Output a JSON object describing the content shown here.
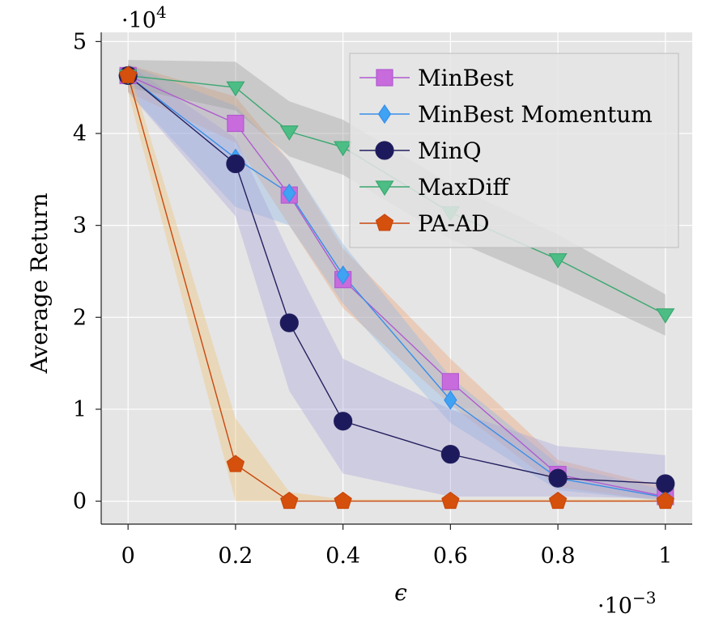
{
  "chart_data": {
    "type": "line",
    "xlabel": "ϵ",
    "ylabel": "Average Return",
    "x_multiplier": "·10",
    "x_multiplier_exp": "−3",
    "y_multiplier": "·10",
    "y_multiplier_exp": "4",
    "xlim": [
      -0.05,
      1.05
    ],
    "ylim": [
      -0.25,
      5.1
    ],
    "x_ticks": [
      0,
      0.2,
      0.4,
      0.6,
      0.8,
      1
    ],
    "x_tick_labels": [
      "0",
      "0.2",
      "0.4",
      "0.6",
      "0.8",
      "1"
    ],
    "y_ticks": [
      0,
      1,
      2,
      3,
      4,
      5
    ],
    "y_tick_labels": [
      "0",
      "1",
      "2",
      "3",
      "4",
      "5"
    ],
    "grid": true,
    "legend_position": "top-right",
    "x": [
      0,
      0.2,
      0.3,
      0.4,
      0.6,
      0.8,
      1
    ],
    "series": [
      {
        "name": "MinBest",
        "marker": "square",
        "line_color": "#b05bd0",
        "fill_color": "#c86bdc",
        "band_color": "#f0a070",
        "values": [
          4.63,
          4.11,
          3.33,
          2.41,
          1.3,
          0.29,
          0.05
        ],
        "band_upper": [
          4.75,
          4.4,
          3.7,
          2.75,
          1.55,
          0.45,
          0.15
        ],
        "band_lower": [
          4.45,
          3.9,
          3.0,
          2.1,
          1.05,
          0.15,
          0.0
        ]
      },
      {
        "name": "MinBest Momentum",
        "marker": "diamond",
        "line_color": "#3a8ee8",
        "fill_color": "#3fa2f2",
        "band_color": "#8fb8e8",
        "values": [
          4.63,
          3.73,
          3.35,
          2.46,
          1.1,
          0.25,
          0.04
        ],
        "band_upper": [
          4.75,
          4.3,
          3.7,
          2.8,
          1.35,
          0.4,
          0.12
        ],
        "band_lower": [
          4.45,
          3.2,
          3.0,
          2.15,
          0.85,
          0.12,
          0.0
        ]
      },
      {
        "name": "MinQ",
        "marker": "circle",
        "line_color": "#23205e",
        "fill_color": "#1c1a5c",
        "band_color": "#a9a4d8",
        "values": [
          4.63,
          3.67,
          1.94,
          0.87,
          0.51,
          0.25,
          0.19
        ],
        "band_upper": [
          4.75,
          3.95,
          2.7,
          1.55,
          1.0,
          0.6,
          0.5
        ],
        "band_lower": [
          4.45,
          3.1,
          1.2,
          0.3,
          0.05,
          0.05,
          0.03
        ]
      },
      {
        "name": "MaxDiff",
        "marker": "triangle-down",
        "line_color": "#3aa870",
        "fill_color": "#4cbd84",
        "band_color": "#9a9a9a",
        "values": [
          4.63,
          4.5,
          4.02,
          3.85,
          3.14,
          2.63,
          2.03
        ],
        "band_upper": [
          4.8,
          4.78,
          4.35,
          4.15,
          3.45,
          2.9,
          2.25
        ],
        "band_lower": [
          4.5,
          4.25,
          3.75,
          3.55,
          2.85,
          2.35,
          1.8
        ]
      },
      {
        "name": "PA-AD",
        "marker": "pentagon",
        "line_color": "#c8480e",
        "fill_color": "#d4500c",
        "band_color": "#f0c070",
        "values": [
          4.63,
          0.4,
          0.0,
          0.0,
          0.0,
          0.0,
          0.0
        ],
        "band_upper": [
          4.75,
          0.9,
          0.1,
          0.02,
          0.02,
          0.02,
          0.02
        ],
        "band_lower": [
          4.45,
          0.0,
          0.0,
          0.0,
          0.0,
          0.0,
          0.0
        ]
      }
    ]
  }
}
